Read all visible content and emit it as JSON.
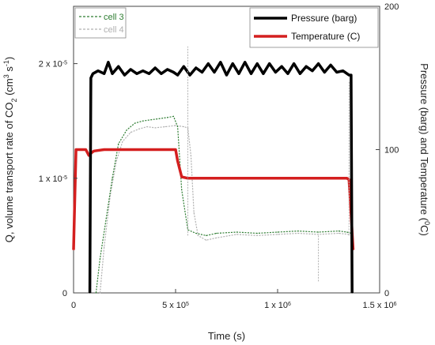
{
  "chart_data": {
    "type": "line",
    "xlabel": "Time (s)",
    "xlim": [
      0,
      1500000
    ],
    "x_ticks": [
      {
        "value": 0,
        "label": "0"
      },
      {
        "value": 500000,
        "label": "5 x 10",
        "exp": "5"
      },
      {
        "value": 1000000,
        "label": "1 x 10",
        "exp": "6"
      },
      {
        "value": 1500000,
        "label": "1.5 x 10",
        "exp": "6"
      }
    ],
    "y_left": {
      "label_main": "Q, volume transport rate of CO",
      "label_sub": "2",
      "label_unit_open": " (cm",
      "label_unit_sup1": "3",
      "label_unit_mid": " s",
      "label_unit_sup2": "-1",
      "label_unit_close": ")",
      "lim": [
        0,
        2.5e-05
      ],
      "ticks": [
        {
          "value": 0,
          "label": "0"
        },
        {
          "value": 1e-05,
          "label": "1 x 10",
          "exp": "-5"
        },
        {
          "value": 2e-05,
          "label": "2 x 10",
          "exp": "-5"
        }
      ]
    },
    "y_right": {
      "label_main": "Pressure (barg) and Temperature (",
      "label_sup": "0",
      "label_close": "C)",
      "lim": [
        0,
        200
      ],
      "ticks": [
        {
          "value": 0,
          "label": "0"
        },
        {
          "value": 100,
          "label": "100"
        },
        {
          "value": 200,
          "label": "200"
        }
      ]
    },
    "legend_left": {
      "placement": "top-left",
      "entries": [
        {
          "name": "cell 3",
          "color": "#2e7d32"
        },
        {
          "name": "cell 4",
          "color": "#b0b0b0"
        }
      ]
    },
    "legend_right": {
      "placement": "top-right",
      "entries": [
        {
          "name": "Pressure (barg)",
          "color": "#000000"
        },
        {
          "name": "Temperature (C)",
          "color": "#d41f1f"
        }
      ]
    },
    "series": [
      {
        "name": "cell 3",
        "axis": "left",
        "color": "#2e7d32",
        "style": "dashed",
        "x": [
          110000,
          130000,
          160000,
          190000,
          220000,
          260000,
          300000,
          340000,
          380000,
          420000,
          460000,
          490000,
          510000,
          530000,
          560000,
          600000,
          650000,
          700000,
          800000,
          900000,
          1000000,
          1100000,
          1200000,
          1300000,
          1340000,
          1360000,
          1370000
        ],
        "y": [
          0,
          3e-06,
          6.5e-06,
          1e-05,
          1.3e-05,
          1.42e-05,
          1.48e-05,
          1.5e-05,
          1.51e-05,
          1.52e-05,
          1.53e-05,
          1.54e-05,
          1.45e-05,
          9e-06,
          5.5e-06,
          5.2e-06,
          5e-06,
          5.2e-06,
          5.3e-06,
          5.2e-06,
          5.3e-06,
          5.4e-06,
          5.3e-06,
          5.4e-06,
          5.3e-06,
          5.2e-06,
          5.2e-06
        ]
      },
      {
        "name": "cell 4",
        "axis": "left",
        "color": "#b0b0b0",
        "style": "dashed",
        "x": [
          130000,
          150000,
          180000,
          210000,
          240000,
          280000,
          320000,
          360000,
          400000,
          450000,
          500000,
          540000,
          560000,
          575000,
          590000,
          610000,
          650000,
          700000,
          800000,
          900000,
          1000000,
          1100000,
          1200000,
          1300000,
          1350000,
          1370000
        ],
        "y": [
          0,
          4e-06,
          8.5e-06,
          1.15e-05,
          1.32e-05,
          1.4e-05,
          1.43e-05,
          1.45e-05,
          1.44e-05,
          1.45e-05,
          1.46e-05,
          1.45e-05,
          1.44e-05,
          1.2e-05,
          7e-06,
          5e-06,
          4.6e-06,
          4.8e-06,
          5.1e-06,
          5e-06,
          5.1e-06,
          5.2e-06,
          5.1e-06,
          5.2e-06,
          5.1e-06,
          5e-06
        ]
      },
      {
        "name": "Pressure (barg)",
        "axis": "right",
        "color": "#000000",
        "style": "solid",
        "x": [
          80000,
          85000,
          95000,
          120000,
          150000,
          170000,
          190000,
          220000,
          250000,
          280000,
          310000,
          340000,
          370000,
          400000,
          430000,
          460000,
          490000,
          510000,
          540000,
          570000,
          600000,
          630000,
          660000,
          690000,
          720000,
          750000,
          780000,
          810000,
          840000,
          870000,
          900000,
          930000,
          960000,
          990000,
          1020000,
          1050000,
          1080000,
          1110000,
          1140000,
          1170000,
          1200000,
          1230000,
          1260000,
          1290000,
          1320000,
          1350000,
          1360000,
          1365000
        ],
        "y": [
          0,
          150,
          153,
          155,
          153,
          161,
          153,
          158,
          152,
          156,
          153,
          155,
          153,
          157,
          153,
          156,
          154,
          152,
          158,
          152,
          157,
          154,
          160,
          154,
          161,
          152,
          160,
          153,
          161,
          153,
          160,
          153,
          160,
          154,
          158,
          153,
          160,
          153,
          158,
          155,
          160,
          154,
          159,
          154,
          155,
          152,
          152,
          0
        ]
      },
      {
        "name": "Temperature (C)",
        "axis": "right",
        "color": "#d41f1f",
        "style": "solid",
        "x": [
          0,
          5000,
          12000,
          30000,
          60000,
          75000,
          90000,
          100000,
          150000,
          300000,
          500000,
          510000,
          530000,
          560000,
          700000,
          1000000,
          1200000,
          1340000,
          1350000,
          1360000,
          1370000
        ],
        "y": [
          30,
          60,
          100,
          100,
          100,
          96,
          98,
          99,
          100,
          100,
          100,
          92,
          81,
          80,
          80,
          80,
          80,
          80,
          79,
          55,
          30
        ]
      }
    ],
    "spikes": [
      {
        "series": "cell 4",
        "x": 560000,
        "y": 2.15e-05
      },
      {
        "series": "cell 4",
        "x": 1350000,
        "y": 1.85e-05
      },
      {
        "series": "cell 4",
        "x": 1200000,
        "y": 9e-07
      }
    ]
  }
}
